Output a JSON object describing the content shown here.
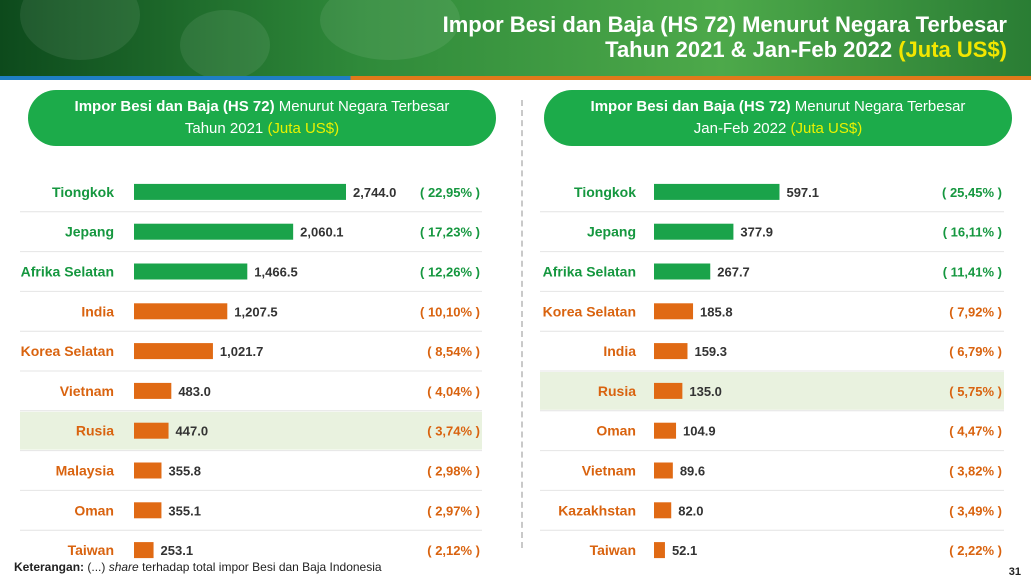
{
  "header": {
    "title_line1": "Impor Besi dan Baja (HS 72) Menurut Negara Terbesar",
    "title_line2_prefix": "Tahun 2021 & Jan-Feb 2022",
    "title_line2_unit": "(Juta US$)"
  },
  "colors": {
    "green_bar": "#1aa34a",
    "orange_bar": "#e06a14",
    "green_label": "#15973f",
    "orange_label": "#d9630f",
    "highlight_row": "#e9f2df"
  },
  "chart_data": [
    {
      "type": "bar",
      "orientation": "horizontal",
      "title_bold": "Impor Besi dan Baja (HS 72)",
      "title_rest": "Menurut Negara Terbesar",
      "subtitle": "Tahun 2021",
      "unit": "(Juta US$)",
      "categories": [
        "Tiongkok",
        "Jepang",
        "Afrika Selatan",
        "India",
        "Korea Selatan",
        "Vietnam",
        "Rusia",
        "Malaysia",
        "Oman",
        "Taiwan"
      ],
      "values": [
        2744.0,
        2060.1,
        1466.5,
        1207.5,
        1021.7,
        483.0,
        447.0,
        355.8,
        355.1,
        253.1
      ],
      "value_labels": [
        "2,744.0",
        "2,060.1",
        "1,466.5",
        "1,207.5",
        "1,021.7",
        "483.0",
        "447.0",
        "355.8",
        "355.1",
        "253.1"
      ],
      "shares": [
        "( 22,95% )",
        "( 17,23% )",
        "( 12,26% )",
        "( 10,10% )",
        "( 8,54% )",
        "( 4,04% )",
        "( 3,74% )",
        "( 2,98% )",
        "( 2,97% )",
        "( 2,12% )"
      ],
      "colors": [
        "green",
        "green",
        "green",
        "orange",
        "orange",
        "orange",
        "orange",
        "orange",
        "orange",
        "orange"
      ],
      "highlight": "Rusia",
      "xlim": [
        0,
        2744.0
      ]
    },
    {
      "type": "bar",
      "orientation": "horizontal",
      "title_bold": "Impor Besi dan Baja (HS 72)",
      "title_rest": "Menurut Negara Terbesar",
      "subtitle": "Jan-Feb 2022",
      "unit": "(Juta US$)",
      "categories": [
        "Tiongkok",
        "Jepang",
        "Afrika Selatan",
        "Korea Selatan",
        "India",
        "Rusia",
        "Oman",
        "Vietnam",
        "Kazakhstan",
        "Taiwan"
      ],
      "values": [
        597.1,
        377.9,
        267.7,
        185.8,
        159.3,
        135.0,
        104.9,
        89.6,
        82.0,
        52.1
      ],
      "value_labels": [
        "597.1",
        "377.9",
        "267.7",
        "185.8",
        "159.3",
        "135.0",
        "104.9",
        "89.6",
        "82.0",
        "52.1"
      ],
      "shares": [
        "( 25,45% )",
        "( 16,11% )",
        "( 11,41% )",
        "( 7,92% )",
        "( 6,79% )",
        "( 5,75% )",
        "( 4,47% )",
        "( 3,82% )",
        "( 3,49% )",
        "( 2,22% )"
      ],
      "colors": [
        "green",
        "green",
        "green",
        "orange",
        "orange",
        "orange",
        "orange",
        "orange",
        "orange",
        "orange"
      ],
      "highlight": "Rusia",
      "xlim": [
        0,
        1380
      ]
    }
  ],
  "footer": {
    "label": "Keterangan:",
    "text_a": "(...)",
    "text_em": "share",
    "text_b": "terhadap total impor Besi dan Baja Indonesia"
  },
  "page_number": "31"
}
